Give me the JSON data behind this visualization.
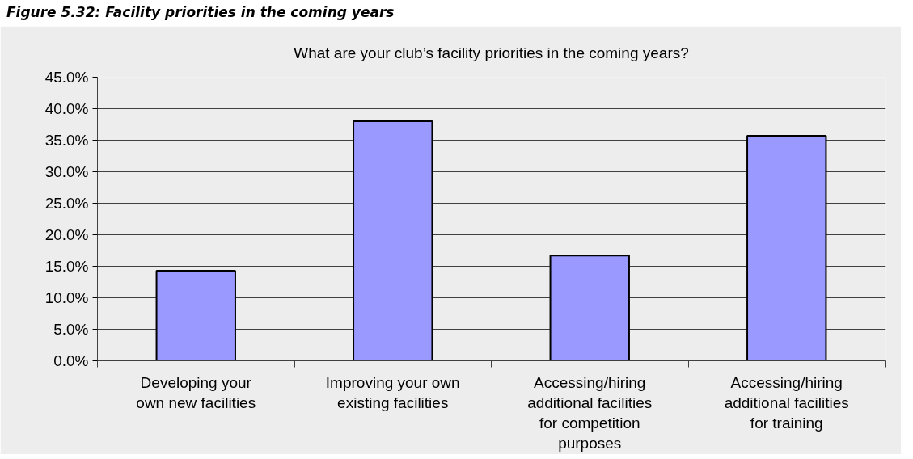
{
  "chart_data": {
    "type": "bar",
    "title": "What are your club’s facility priorities in the coming years?",
    "annotations": [
      "Figure 5.32: Facility priorities in the coming years"
    ],
    "categories": [
      "Developing your\nown new facilities",
      "Improving your own\nexisting facilities",
      "Accessing/hiring\nadditional facilities\nfor competition\npurposes",
      "Accessing/hiring\nadditional facilities\nfor training"
    ],
    "values": [
      14.3,
      38.0,
      16.7,
      35.7
    ],
    "color": "#9999ff",
    "ylim": [
      0,
      45
    ],
    "yticks": [
      {
        "value": 0,
        "label": "0.0%"
      },
      {
        "value": 5,
        "label": "5.0%"
      },
      {
        "value": 10,
        "label": "10.0%"
      },
      {
        "value": 15,
        "label": "15.0%"
      },
      {
        "value": 20,
        "label": "20.0%"
      },
      {
        "value": 25,
        "label": "25.0%"
      },
      {
        "value": 30,
        "label": "30.0%"
      },
      {
        "value": 35,
        "label": "35.0%"
      },
      {
        "value": 40,
        "label": "40.0%"
      },
      {
        "value": 45,
        "label": "45.0%"
      }
    ],
    "grid": "y"
  }
}
